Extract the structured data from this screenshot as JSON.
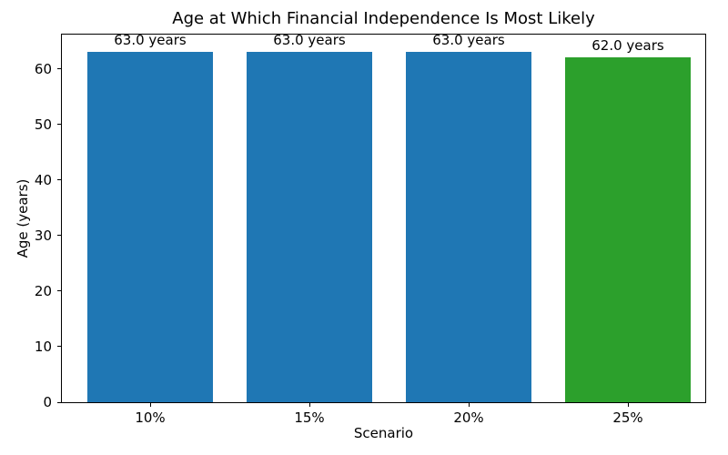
{
  "chart_data": {
    "type": "bar",
    "title": "Age at Which Financial Independence Is Most Likely",
    "xlabel": "Scenario",
    "ylabel": "Age (years)",
    "categories": [
      "10%",
      "15%",
      "20%",
      "25%"
    ],
    "values": [
      63.0,
      63.0,
      63.0,
      62.0
    ],
    "bar_labels": [
      "63.0 years",
      "63.0 years",
      "63.0 years",
      "62.0 years"
    ],
    "bar_colors": [
      "#1f77b4",
      "#1f77b4",
      "#1f77b4",
      "#2ca02c"
    ],
    "yticks": [
      0,
      10,
      20,
      30,
      40,
      50,
      60
    ],
    "ylim": [
      0,
      66.15
    ],
    "grid": false,
    "legend": "none",
    "background": "#ffffff",
    "spine_color": "#000000"
  }
}
